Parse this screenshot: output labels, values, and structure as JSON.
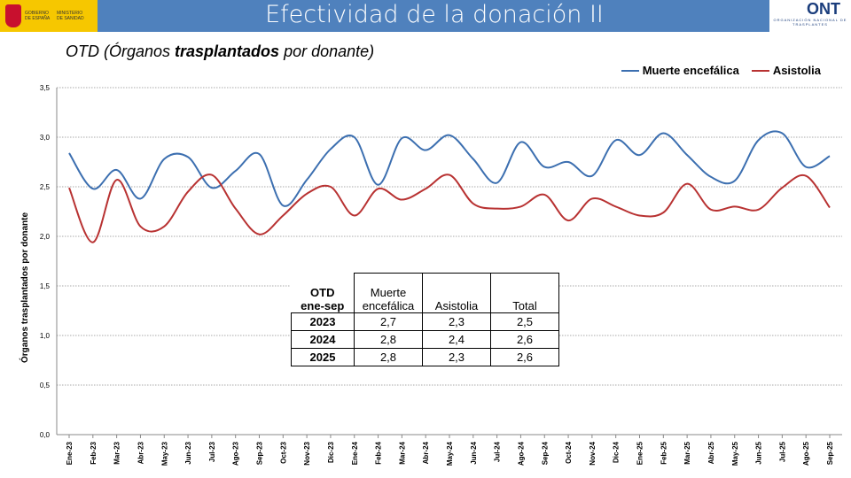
{
  "header": {
    "title": "Efectividad de la donación II",
    "gov_text": "GOBIERNO DE ESPAÑA",
    "ministry_text": "MINISTERIO DE SANIDAD",
    "ont_logo": "ONT",
    "ont_sub": "ORGANIZACIÓN NACIONAL DE TRASPLANTES"
  },
  "subtitle": {
    "pre": "OTD (Órganos ",
    "bold": "trasplantados",
    "post": " por donante)"
  },
  "colors": {
    "series1": "#3c6fb0",
    "series2": "#b83232",
    "header": "#4f81bd"
  },
  "chart_data": {
    "type": "line",
    "ylabel": "Órganos trasplantados por donante",
    "ylim": [
      0,
      3.5
    ],
    "yticks": [
      "0,0",
      "0,5",
      "1,0",
      "1,5",
      "2,0",
      "2,5",
      "3,0",
      "3,5"
    ],
    "legend_position": "top-right",
    "grid": true,
    "categories": [
      "Ene-23",
      "Feb-23",
      "Mar-23",
      "Abr-23",
      "May-23",
      "Jun-23",
      "Jul-23",
      "Ago-23",
      "Sep-23",
      "Oct-23",
      "Nov-23",
      "Dic-23",
      "Ene-24",
      "Feb-24",
      "Mar-24",
      "Abr-24",
      "May-24",
      "Jun-24",
      "Jul-24",
      "Ago-24",
      "Sep-24",
      "Oct-24",
      "Nov-24",
      "Dic-24",
      "Ene-25",
      "Feb-25",
      "Mar-25",
      "Abr-25",
      "May-25",
      "Jun-25",
      "Jul-25",
      "Ago-25",
      "Sep-25"
    ],
    "series": [
      {
        "name": "Muerte encefálica",
        "values": [
          2.84,
          2.48,
          2.67,
          2.38,
          2.78,
          2.8,
          2.49,
          2.66,
          2.83,
          2.31,
          2.57,
          2.88,
          3.0,
          2.52,
          2.99,
          2.87,
          3.02,
          2.78,
          2.54,
          2.95,
          2.7,
          2.75,
          2.61,
          2.97,
          2.82,
          3.04,
          2.82,
          2.6,
          2.56,
          2.97,
          3.04,
          2.7,
          2.81
        ]
      },
      {
        "name": "Asistolia",
        "values": [
          2.49,
          1.94,
          2.57,
          2.1,
          2.1,
          2.45,
          2.62,
          2.28,
          2.02,
          2.21,
          2.43,
          2.5,
          2.21,
          2.48,
          2.37,
          2.48,
          2.62,
          2.33,
          2.28,
          2.3,
          2.42,
          2.16,
          2.38,
          2.3,
          2.21,
          2.24,
          2.53,
          2.27,
          2.3,
          2.27,
          2.49,
          2.61,
          2.29
        ]
      }
    ]
  },
  "table": {
    "header": [
      "OTD\nene-sep",
      "Muerte encefálica",
      "Asistolia",
      "Total"
    ],
    "rows": [
      [
        "2023",
        "2,7",
        "2,3",
        "2,5"
      ],
      [
        "2024",
        "2,8",
        "2,4",
        "2,6"
      ],
      [
        "2025",
        "2,8",
        "2,3",
        "2,6"
      ]
    ]
  }
}
